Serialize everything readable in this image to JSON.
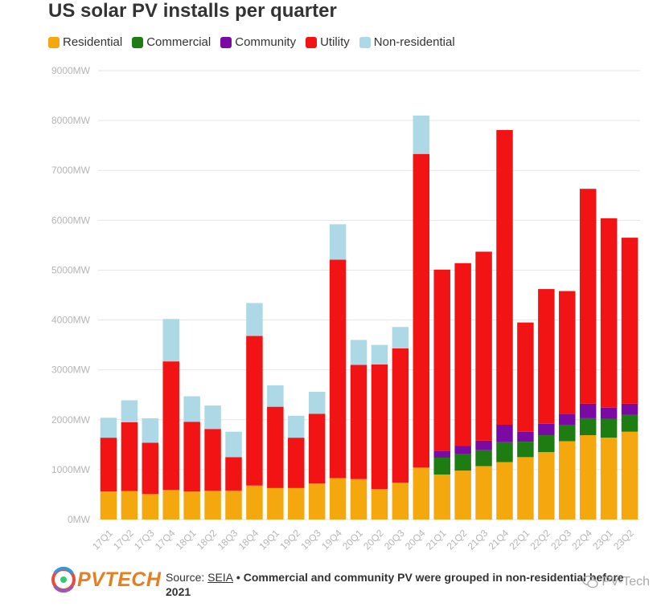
{
  "chart_data": {
    "type": "bar",
    "stacked": true,
    "title": "US solar PV installs per quarter",
    "categories": [
      "17Q1",
      "17Q2",
      "17Q3",
      "17Q4",
      "18Q1",
      "18Q2",
      "18Q3",
      "18Q4",
      "19Q1",
      "19Q2",
      "19Q3",
      "19Q4",
      "20Q1",
      "20Q2",
      "20Q3",
      "20Q4",
      "21Q1",
      "21Q2",
      "21Q3",
      "21Q4",
      "22Q1",
      "22Q2",
      "22Q3",
      "22Q4",
      "23Q1",
      "23Q2"
    ],
    "series": [
      {
        "name": "Residential",
        "color": "#f5a80e",
        "values": [
          560,
          570,
          510,
          590,
          560,
          575,
          580,
          680,
          630,
          630,
          720,
          830,
          810,
          610,
          740,
          1040,
          900,
          980,
          1070,
          1150,
          1250,
          1350,
          1570,
          1690,
          1640,
          1760
        ]
      },
      {
        "name": "Commercial",
        "color": "#1e7d12",
        "values": [
          0,
          0,
          0,
          0,
          0,
          0,
          0,
          0,
          0,
          0,
          0,
          0,
          0,
          0,
          0,
          0,
          340,
          340,
          320,
          400,
          310,
          340,
          330,
          340,
          380,
          340
        ]
      },
      {
        "name": "Community",
        "color": "#7a0aa3",
        "values": [
          0,
          0,
          0,
          0,
          0,
          0,
          0,
          0,
          0,
          0,
          0,
          0,
          0,
          0,
          0,
          0,
          140,
          160,
          190,
          350,
          200,
          230,
          220,
          290,
          220,
          220
        ]
      },
      {
        "name": "Utility",
        "color": "#f21414",
        "values": [
          1080,
          1380,
          1030,
          2580,
          1400,
          1240,
          670,
          3000,
          1630,
          1010,
          1400,
          4380,
          2290,
          2500,
          2690,
          6290,
          3630,
          3660,
          3790,
          5910,
          2190,
          2700,
          2460,
          4310,
          3800,
          3330
        ]
      },
      {
        "name": "Non-residential",
        "color": "#add8e6",
        "values": [
          400,
          440,
          490,
          850,
          510,
          470,
          510,
          660,
          430,
          440,
          440,
          710,
          500,
          390,
          430,
          770,
          0,
          0,
          0,
          0,
          0,
          0,
          0,
          0,
          0,
          0
        ]
      }
    ],
    "ylim": [
      0,
      9000
    ],
    "yticks": [
      "0MW",
      "1000MW",
      "2000MW",
      "3000MW",
      "4000MW",
      "5000MW",
      "6000MW",
      "7000MW",
      "8000MW",
      "9000MW"
    ],
    "grid": true,
    "legend_position": "top-left"
  },
  "footer": {
    "logo_text": "PVTECH",
    "source_label": "Source: ",
    "source_link": "SEIA",
    "separator": " • ",
    "note": "Commercial and community PV were grouped in non-residential before 2021",
    "watermark": "PV-Tech"
  }
}
